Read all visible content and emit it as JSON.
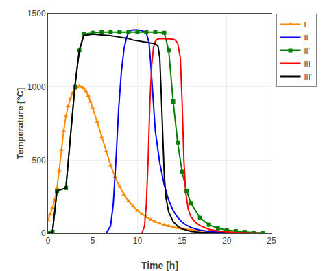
{
  "chart_data": {
    "type": "line",
    "xlabel": "Time [h]",
    "ylabel": "Temperature [°C]",
    "xlim": [
      0,
      25
    ],
    "ylim": [
      0,
      1500
    ],
    "xticks": [
      0,
      5,
      10,
      15,
      20,
      25
    ],
    "yticks": [
      0,
      500,
      1000,
      1500
    ],
    "grid": true,
    "legend": "upper right",
    "series": [
      {
        "name": "I",
        "color": "#ff8800",
        "marker": "triangle-up",
        "line_style": "solid",
        "x": [
          0,
          0.25,
          0.5,
          0.75,
          1,
          1.25,
          1.5,
          1.75,
          2,
          2.25,
          2.5,
          2.75,
          3,
          3.25,
          3.5,
          3.75,
          4,
          4.25,
          4.5,
          4.75,
          5,
          5.5,
          6,
          6.5,
          7,
          7.5,
          8,
          8.5,
          9,
          9.5,
          10,
          10.5,
          11,
          11.5,
          12,
          12.5,
          13,
          13.5,
          14,
          14.5,
          15,
          16,
          17,
          18,
          19,
          20,
          21,
          22,
          23,
          24
        ],
        "values": [
          90,
          130,
          175,
          230,
          310,
          430,
          570,
          700,
          800,
          870,
          920,
          960,
          985,
          1000,
          1005,
          1000,
          990,
          970,
          940,
          900,
          855,
          760,
          660,
          560,
          465,
          385,
          320,
          265,
          220,
          185,
          155,
          130,
          110,
          93,
          79,
          67,
          57,
          49,
          42,
          36,
          31,
          23,
          18,
          14,
          11,
          8,
          6,
          4,
          2,
          1
        ]
      },
      {
        "name": "II",
        "color": "#0000ff",
        "line_style": "solid",
        "x": [
          0,
          6.5,
          7.0,
          7.3,
          7.6,
          7.9,
          8.2,
          8.5,
          8.8,
          9.0,
          9.2,
          9.5,
          10.0,
          10.5,
          11.0,
          11.3,
          11.5,
          11.8,
          12.0,
          12.5,
          13.0,
          13.5,
          14.0,
          14.5,
          15.0,
          15.5,
          16.0,
          17.0,
          18.0,
          19.0,
          20.0,
          21.0,
          22.0,
          23.0,
          24.0
        ],
        "values": [
          0,
          0,
          50,
          200,
          500,
          850,
          1100,
          1260,
          1340,
          1370,
          1385,
          1390,
          1390,
          1385,
          1370,
          1300,
          1150,
          900,
          700,
          480,
          330,
          225,
          155,
          108,
          76,
          54,
          39,
          21,
          12,
          7,
          4,
          2,
          1,
          0,
          0
        ]
      },
      {
        "name": "II'",
        "color": "#008000",
        "marker": "square",
        "line_style": "solid",
        "x": [
          0,
          0.5,
          1.0,
          2.0,
          3.0,
          3.5,
          4.0,
          5.0,
          6.0,
          7.0,
          8.0,
          9.0,
          10.0,
          11.0,
          12.0,
          13.0,
          13.5,
          14.0,
          14.5,
          15.0,
          15.5,
          16.0,
          17.0,
          18.0,
          19.0,
          20.0,
          21.0,
          22.0,
          23.0,
          24.0
        ],
        "values": [
          0,
          10,
          290,
          310,
          1000,
          1250,
          1360,
          1370,
          1375,
          1375,
          1375,
          1375,
          1375,
          1375,
          1375,
          1370,
          1250,
          900,
          620,
          420,
          290,
          205,
          105,
          58,
          34,
          21,
          14,
          9,
          5,
          3
        ]
      },
      {
        "name": "III",
        "color": "#ff0000",
        "line_style": "solid",
        "x": [
          0,
          10.5,
          10.8,
          11.0,
          11.2,
          11.4,
          11.6,
          11.8,
          12.0,
          12.2,
          12.5,
          13.0,
          13.5,
          14.0,
          14.2,
          14.5,
          14.8,
          15.0,
          15.2,
          15.4,
          15.7,
          16.0,
          16.5,
          17.0,
          17.5,
          18.0,
          19.0,
          20.0,
          21.0,
          22.0,
          23.0,
          24.0
        ],
        "values": [
          0,
          0,
          50,
          200,
          500,
          900,
          1150,
          1270,
          1310,
          1325,
          1330,
          1330,
          1328,
          1325,
          1320,
          1300,
          1200,
          900,
          500,
          280,
          160,
          110,
          75,
          52,
          38,
          27,
          15,
          9,
          5,
          3,
          1,
          0
        ]
      },
      {
        "name": "III'",
        "color": "#000000",
        "line_style": "solid",
        "x": [
          0,
          0.5,
          1.0,
          2.0,
          3.0,
          3.5,
          4.0,
          5.0,
          6.0,
          7.0,
          8.0,
          9.0,
          9.5,
          10.0,
          10.5,
          11.0,
          11.5,
          12.0,
          12.3,
          12.5,
          12.7,
          12.9,
          13.0,
          13.2,
          13.5,
          14.0,
          14.5,
          15.0,
          16.0,
          17.0,
          18.0,
          19.0,
          20.0,
          21.0,
          22.0
        ],
        "values": [
          0,
          10,
          290,
          310,
          1000,
          1250,
          1350,
          1360,
          1355,
          1350,
          1340,
          1330,
          1320,
          1315,
          1310,
          1305,
          1300,
          1295,
          1280,
          1200,
          900,
          600,
          400,
          240,
          145,
          80,
          48,
          30,
          13,
          6,
          3,
          1,
          0,
          0,
          0
        ]
      }
    ]
  }
}
